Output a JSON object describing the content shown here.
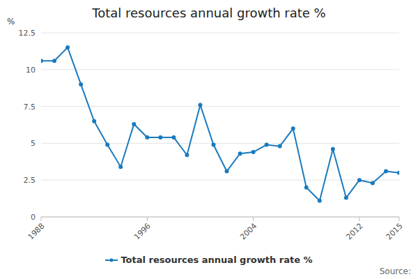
{
  "chart_data": {
    "type": "line",
    "title": "Total resources annual growth rate %",
    "y_label": "%",
    "source": "Source:",
    "x": [
      1988,
      1989,
      1990,
      1991,
      1992,
      1993,
      1994,
      1995,
      1996,
      1997,
      1998,
      1999,
      2000,
      2001,
      2002,
      2003,
      2004,
      2005,
      2006,
      2007,
      2008,
      2009,
      2010,
      2011,
      2012,
      2013,
      2014,
      2015
    ],
    "series": [
      {
        "name": "Total resources annual growth rate %",
        "color": "#1a7abf",
        "marker": "circle",
        "values": [
          10.6,
          10.6,
          11.5,
          9.0,
          6.5,
          4.9,
          3.4,
          6.3,
          5.4,
          5.4,
          5.4,
          4.2,
          7.6,
          4.9,
          3.1,
          4.3,
          4.4,
          4.9,
          4.8,
          6.0,
          2.0,
          1.1,
          4.6,
          1.3,
          2.5,
          2.3,
          3.1,
          3.0
        ]
      }
    ],
    "xlim": [
      1988,
      2015
    ],
    "xticks": [
      1988,
      1996,
      2004,
      2012,
      2015
    ],
    "ylim": [
      0,
      12.5
    ],
    "yticks": [
      0,
      2.5,
      5,
      7.5,
      10,
      12.5
    ],
    "grid": true,
    "legend": "bottom"
  }
}
